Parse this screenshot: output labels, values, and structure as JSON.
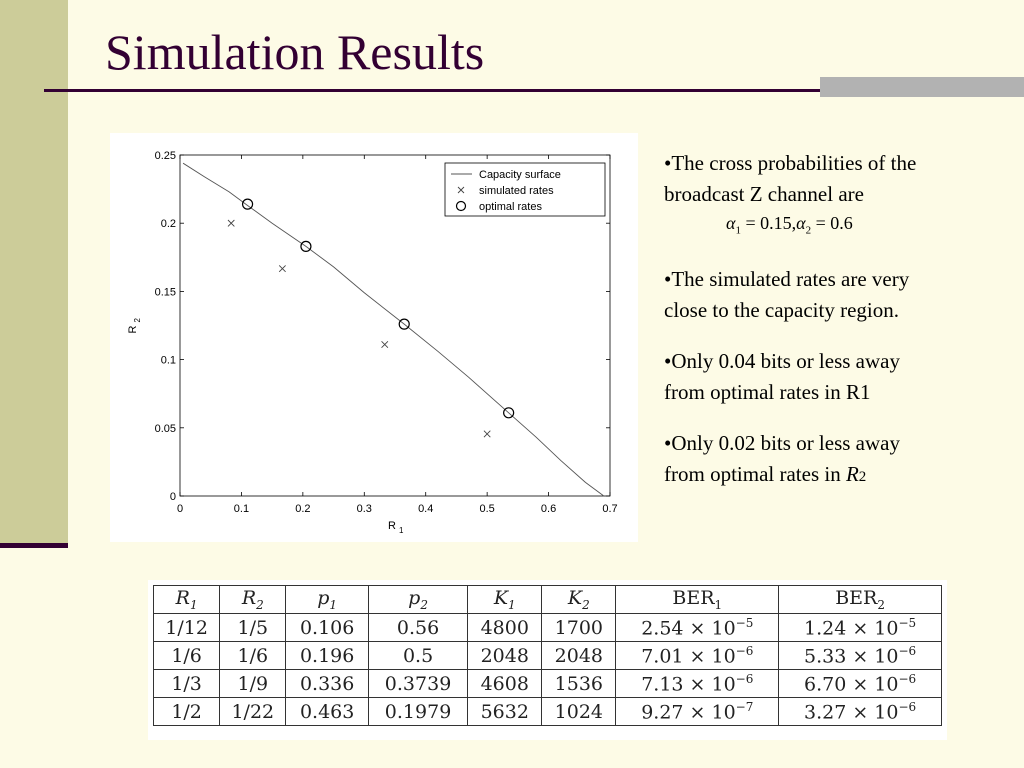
{
  "slide": {
    "title": "Simulation Results",
    "colors": {
      "title": "#330033",
      "sidebar": "#cccc99",
      "background": "#fdfbe6",
      "accent_bar": "#b2b2b2"
    }
  },
  "chart_data": {
    "type": "scatter",
    "xlabel": "R",
    "xlabel_sub": "1",
    "ylabel": "R",
    "ylabel_sub": "2",
    "xlim": [
      0,
      0.7
    ],
    "ylim": [
      0,
      0.25
    ],
    "x_ticks": [
      0,
      0.1,
      0.2,
      0.3,
      0.4,
      0.5,
      0.6,
      0.7
    ],
    "x_tick_labels": [
      "0",
      "0.1",
      "0.2",
      "0.3",
      "0.4",
      "0.5",
      "0.6",
      "0.7"
    ],
    "y_ticks": [
      0,
      0.05,
      0.1,
      0.15,
      0.2,
      0.25
    ],
    "y_tick_labels": [
      "0",
      "0.05",
      "0.1",
      "0.15",
      "0.2",
      "0.25"
    ],
    "grid": false,
    "legend_position": "top-right",
    "series": [
      {
        "name": "Capacity surface",
        "style": "line",
        "x": [
          0.005,
          0.04,
          0.08,
          0.11,
          0.15,
          0.205,
          0.25,
          0.3,
          0.365,
          0.42,
          0.47,
          0.535,
          0.58,
          0.62,
          0.66,
          0.69
        ],
        "y": [
          0.244,
          0.234,
          0.223,
          0.213,
          0.2,
          0.183,
          0.168,
          0.149,
          0.126,
          0.106,
          0.087,
          0.061,
          0.043,
          0.026,
          0.01,
          0.0
        ]
      },
      {
        "name": "simulated rates",
        "style": "x-marker",
        "x": [
          0.0833,
          0.1667,
          0.3333,
          0.5
        ],
        "y": [
          0.2,
          0.1667,
          0.1111,
          0.0455
        ]
      },
      {
        "name": "optimal rates",
        "style": "circle-marker",
        "x": [
          0.11,
          0.205,
          0.365,
          0.535
        ],
        "y": [
          0.214,
          0.183,
          0.126,
          0.061
        ]
      }
    ]
  },
  "bullets": {
    "b1_line1": "•The cross probabilities of the",
    "b1_line2": "broadcast Z channel are",
    "formula": {
      "alpha": "α",
      "sub1": "1",
      "val1": " = 0.15,",
      "sub2": "2",
      "val2": " = 0.6"
    },
    "b2_line1": "•The simulated rates are very",
    "b2_line2": "close to the capacity region.",
    "b3_line1": "•Only 0.04 bits or less away",
    "b3_line2": "from optimal rates in R1",
    "b4_line1": "•Only 0.02 bits or less away",
    "b4_line2_prefix": "from optimal rates in ",
    "b4_var": "R",
    "b4_sub": "2"
  },
  "table": {
    "headers": [
      {
        "base": "R",
        "sub": "1"
      },
      {
        "base": "R",
        "sub": "2"
      },
      {
        "base": "p",
        "sub": "1"
      },
      {
        "base": "p",
        "sub": "2"
      },
      {
        "base": "K",
        "sub": "1"
      },
      {
        "base": "K",
        "sub": "2"
      },
      {
        "base": "BER",
        "sub": "1"
      },
      {
        "base": "BER",
        "sub": "2"
      }
    ],
    "rows": [
      [
        {
          "v": "1/12"
        },
        {
          "v": "1/5"
        },
        {
          "v": "0.106"
        },
        {
          "v": "0.56"
        },
        {
          "v": "4800"
        },
        {
          "v": "1700"
        },
        {
          "m": "2.54 × 10",
          "e": "−5"
        },
        {
          "m": "1.24 × 10",
          "e": "−5"
        }
      ],
      [
        {
          "v": "1/6"
        },
        {
          "v": "1/6"
        },
        {
          "v": "0.196"
        },
        {
          "v": "0.5"
        },
        {
          "v": "2048"
        },
        {
          "v": "2048"
        },
        {
          "m": "7.01 × 10",
          "e": "−6"
        },
        {
          "m": "5.33 × 10",
          "e": "−6"
        }
      ],
      [
        {
          "v": "1/3"
        },
        {
          "v": "1/9"
        },
        {
          "v": "0.336"
        },
        {
          "v": "0.3739"
        },
        {
          "v": "4608"
        },
        {
          "v": "1536"
        },
        {
          "m": "7.13 × 10",
          "e": "−6"
        },
        {
          "m": "6.70 × 10",
          "e": "−6"
        }
      ],
      [
        {
          "v": "1/2"
        },
        {
          "v": "1/22"
        },
        {
          "v": "0.463"
        },
        {
          "v": "0.1979"
        },
        {
          "v": "5632"
        },
        {
          "v": "1024"
        },
        {
          "m": "9.27 × 10",
          "e": "−7"
        },
        {
          "m": "3.27 × 10",
          "e": "−6"
        }
      ]
    ]
  }
}
